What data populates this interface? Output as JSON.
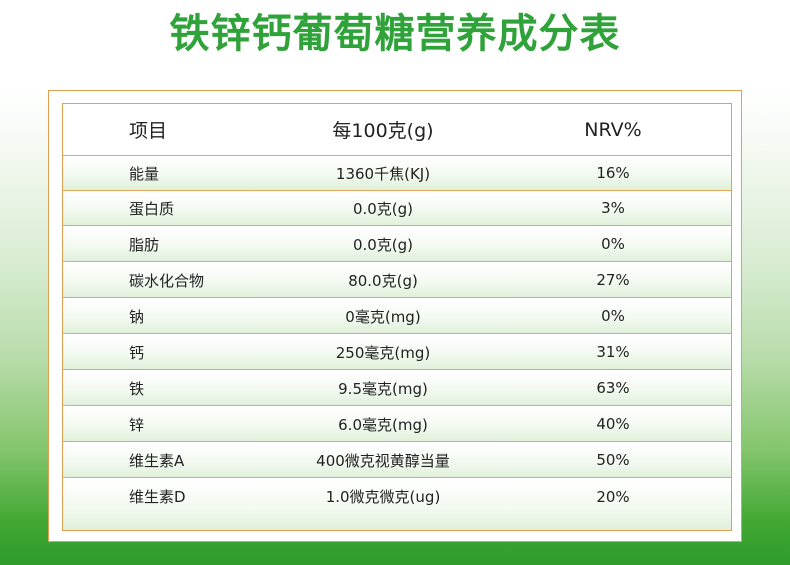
{
  "title": "铁锌钙葡萄糖营养成分表",
  "table": {
    "headers": [
      "项目",
      "每100克(g)",
      "NRV%"
    ],
    "rows": [
      [
        "能量",
        "1360千焦(KJ)",
        "16%"
      ],
      [
        "蛋白质",
        "0.0克(g)",
        "3%"
      ],
      [
        "脂肪",
        "0.0克(g)",
        "0%"
      ],
      [
        "碳水化合物",
        "80.0克(g)",
        "27%"
      ],
      [
        "钠",
        "0毫克(mg)",
        "0%"
      ],
      [
        "钙",
        "250毫克(mg)",
        "31%"
      ],
      [
        "铁",
        "9.5毫克(mg)",
        "63%"
      ],
      [
        "锌",
        "6.0毫克(mg)",
        "40%"
      ],
      [
        "维生素A",
        "400微克视黄醇当量",
        "50%"
      ],
      [
        "维生素D",
        "1.0微克微克(ug)",
        "20%"
      ]
    ]
  },
  "colors": {
    "title": "#2fa33a",
    "border": "#e4a050",
    "background_bottom": "#2d9b2a"
  }
}
